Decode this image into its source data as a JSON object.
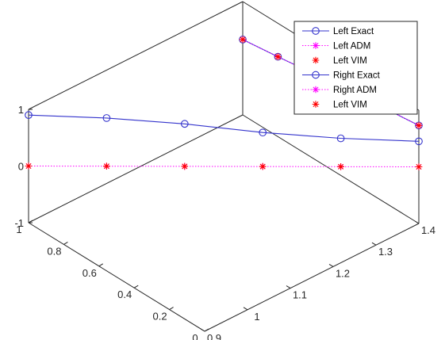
{
  "chart_data": {
    "type": "line3d",
    "title": "",
    "xlabel": "",
    "ylabel": "",
    "zlabel": "",
    "xlim": [
      0.9,
      1.4
    ],
    "ylim": [
      0,
      1
    ],
    "zlim": [
      -1,
      1
    ],
    "grid": false,
    "legend_position": "top-right",
    "axes": {
      "x_ticks": [
        "0.9",
        "1",
        "1.1",
        "1.2",
        "1.3",
        "1.4"
      ],
      "y_ticks": [
        "0",
        "0.2",
        "0.4",
        "0.6",
        "0.8",
        "1"
      ],
      "z_ticks": [
        "-1",
        "0",
        "1"
      ]
    },
    "series": [
      {
        "name": "Left Exact",
        "style": "line-circle",
        "color": "#3333cc",
        "x": [
          0.9,
          1.0,
          1.1,
          1.2,
          1.3,
          1.4
        ],
        "y": [
          1.0,
          0.8,
          0.6,
          0.4,
          0.2,
          0.0
        ],
        "z": [
          0.9,
          0.85,
          0.75,
          0.6,
          0.5,
          0.45
        ]
      },
      {
        "name": "Left ADM",
        "style": "dotted-star",
        "color": "#ff00ff",
        "x": [
          0.9,
          1.0,
          1.1,
          1.2,
          1.3,
          1.4
        ],
        "y": [
          1.0,
          0.8,
          0.6,
          0.4,
          0.2,
          0.0
        ],
        "z": [
          0.0,
          0.0,
          0.0,
          0.0,
          0.0,
          0.0
        ]
      },
      {
        "name": "Left VIM",
        "style": "star",
        "color": "#ff0000",
        "x": [
          0.9,
          1.0,
          1.1,
          1.2,
          1.3,
          1.4
        ],
        "y": [
          1.0,
          0.8,
          0.6,
          0.4,
          0.2,
          0.0
        ],
        "z": [
          0.0,
          0.0,
          0.0,
          0.0,
          0.0,
          0.0
        ]
      },
      {
        "name": "Right Exact",
        "style": "line-circle",
        "color": "#3333cc",
        "x": [
          1.4,
          1.4,
          1.4,
          1.4,
          1.4,
          1.4
        ],
        "y": [
          0.0,
          0.2,
          0.4,
          0.6,
          0.8,
          1.0
        ],
        "z": [
          0.73,
          0.66,
          0.58,
          0.5,
          0.41,
          0.33
        ]
      },
      {
        "name": "Right ADM",
        "style": "dotted-star",
        "color": "#ff00ff",
        "x": [
          1.4,
          1.4,
          1.4,
          1.4,
          1.4,
          1.4
        ],
        "y": [
          0.0,
          0.2,
          0.4,
          0.6,
          0.8,
          1.0
        ],
        "z": [
          0.73,
          0.66,
          0.58,
          0.5,
          0.41,
          0.33
        ]
      },
      {
        "name": "Left VIM",
        "style": "star",
        "color": "#ff0000",
        "x": [
          1.4,
          1.4,
          1.4,
          1.4,
          1.4,
          1.4
        ],
        "y": [
          0.0,
          0.2,
          0.4,
          0.6,
          0.8,
          1.0
        ],
        "z": [
          0.73,
          0.66,
          0.58,
          0.5,
          0.41,
          0.33
        ]
      }
    ]
  }
}
